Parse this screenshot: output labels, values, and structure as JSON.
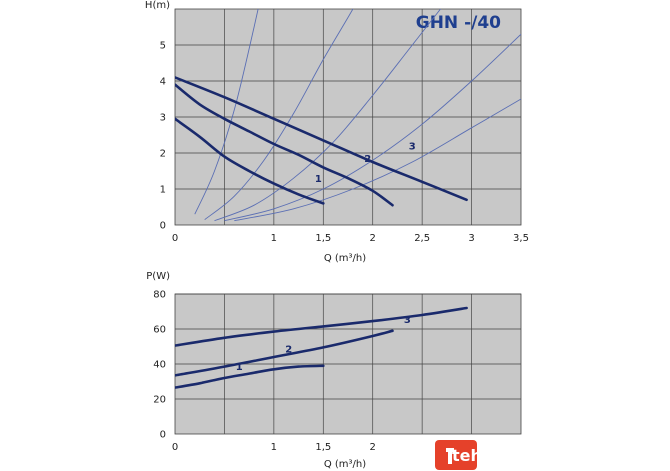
{
  "chart_data": [
    {
      "type": "line",
      "title": "GHN -/40",
      "xlabel": "Q (m³/h)",
      "ylabel": "H(m)",
      "xlim": [
        0,
        3.5
      ],
      "ylim": [
        0,
        6
      ],
      "xticks": [
        0,
        0.5,
        1,
        1.5,
        2,
        2.5,
        3,
        3.5
      ],
      "xtick_labels": [
        "0",
        "",
        "1",
        "1,5",
        "2",
        "2,5",
        "3",
        "3,5"
      ],
      "yticks": [
        0,
        1,
        2,
        3,
        4,
        5
      ],
      "ytick_labels": [
        "0",
        "1",
        "2",
        "3",
        "4",
        "5"
      ],
      "grid": true,
      "series": [
        {
          "name": "1",
          "label_at": [
            1.45,
            1.2
          ],
          "x": [
            0,
            0.25,
            0.5,
            0.75,
            1.0,
            1.25,
            1.5
          ],
          "y": [
            2.95,
            2.45,
            1.9,
            1.5,
            1.15,
            0.85,
            0.6
          ]
        },
        {
          "name": "2",
          "label_at": [
            1.95,
            1.75
          ],
          "x": [
            0,
            0.25,
            0.5,
            0.75,
            1.0,
            1.25,
            1.5,
            1.75,
            2.0,
            2.2
          ],
          "y": [
            3.9,
            3.35,
            2.95,
            2.6,
            2.25,
            1.95,
            1.6,
            1.3,
            0.95,
            0.55
          ]
        },
        {
          "name": "3",
          "label_at": [
            2.4,
            2.1
          ],
          "x": [
            0,
            0.5,
            1.0,
            1.5,
            2.0,
            2.5,
            2.95
          ],
          "y": [
            4.1,
            3.55,
            2.95,
            2.35,
            1.75,
            1.2,
            0.7
          ]
        }
      ],
      "system_curves": [
        {
          "x": [
            0.2,
            0.4,
            0.6,
            0.8,
            1.0
          ],
          "y": [
            0.3,
            1.5,
            3.2,
            5.5,
            8
          ]
        },
        {
          "x": [
            0.3,
            0.6,
            0.9,
            1.2,
            1.5,
            1.8,
            2.0
          ],
          "y": [
            0.15,
            0.8,
            1.8,
            3.1,
            4.6,
            6.0,
            7
          ]
        },
        {
          "x": [
            0.4,
            0.8,
            1.2,
            1.6,
            2.0,
            2.4,
            2.8
          ],
          "y": [
            0.12,
            0.55,
            1.3,
            2.3,
            3.6,
            5.0,
            6.4
          ]
        },
        {
          "x": [
            0.5,
            1.0,
            1.5,
            2.0,
            2.5,
            3.0,
            3.5
          ],
          "y": [
            0.12,
            0.45,
            1.0,
            1.8,
            2.8,
            4.0,
            5.3
          ]
        },
        {
          "x": [
            0.6,
            1.2,
            1.8,
            2.4,
            3.0,
            3.5
          ],
          "y": [
            0.12,
            0.45,
            1.0,
            1.75,
            2.7,
            3.5
          ]
        }
      ],
      "colors": {
        "curve": "#1a2a6c",
        "system": "#5b6fb4",
        "grid": "#444444",
        "background": "#c8c8c8",
        "title": "#1f3f8f"
      }
    },
    {
      "type": "line",
      "title": "",
      "xlabel": "Q (m³/h)",
      "ylabel": "P(W)",
      "xlim": [
        0,
        3.5
      ],
      "ylim": [
        0,
        80
      ],
      "xticks": [
        0,
        0.5,
        1,
        1.5,
        2,
        2.5,
        3,
        3.5
      ],
      "xtick_labels": [
        "0",
        "",
        "1",
        "1,5",
        "2",
        "",
        "",
        ""
      ],
      "yticks": [
        0,
        20,
        40,
        60,
        80
      ],
      "ytick_labels": [
        "0",
        "20",
        "40",
        "60",
        "80"
      ],
      "grid": true,
      "series": [
        {
          "name": "1",
          "label_at": [
            0.65,
            36.5
          ],
          "x": [
            0,
            0.25,
            0.5,
            0.75,
            1.0,
            1.25,
            1.5
          ],
          "y": [
            26.5,
            29,
            32,
            34.5,
            37,
            38.5,
            39
          ]
        },
        {
          "name": "2",
          "label_at": [
            1.15,
            46.5
          ],
          "x": [
            0,
            0.5,
            1.0,
            1.5,
            2.0,
            2.2
          ],
          "y": [
            33.5,
            38.5,
            44,
            49.5,
            56,
            59
          ]
        },
        {
          "name": "3",
          "label_at": [
            2.35,
            63.5
          ],
          "x": [
            0,
            0.5,
            1.0,
            1.5,
            2.0,
            2.5,
            2.95
          ],
          "y": [
            50.5,
            55,
            58.5,
            61.5,
            64.5,
            68,
            72
          ]
        }
      ],
      "colors": {
        "curve": "#1a2a6c",
        "grid": "#444444",
        "background": "#c8c8c8"
      }
    }
  ],
  "watermark": {
    "text": "teh.by",
    "badge_color": "#e5412a"
  }
}
